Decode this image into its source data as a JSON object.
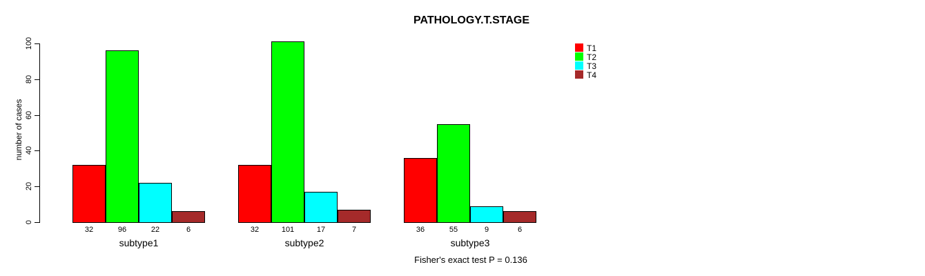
{
  "figure": {
    "title": "PATHOLOGY.T.STAGE",
    "annotation": "Fisher's exact test P = 0.136"
  },
  "chart_data": {
    "type": "bar",
    "title": "PATHOLOGY.T.STAGE",
    "xlabel": "",
    "ylabel": "number of cases",
    "categories": [
      "subtype1",
      "subtype2",
      "subtype3"
    ],
    "series": [
      {
        "name": "T1",
        "color": "#ff0000",
        "values": [
          32,
          32,
          36
        ]
      },
      {
        "name": "T2",
        "color": "#00ff00",
        "values": [
          96,
          101,
          55
        ]
      },
      {
        "name": "T3",
        "color": "#00ffff",
        "values": [
          22,
          17,
          9
        ]
      },
      {
        "name": "T4",
        "color": "#a52a2a",
        "values": [
          6,
          7,
          6
        ]
      }
    ],
    "yticks": [
      0,
      20,
      40,
      60,
      80,
      100
    ],
    "ylim": [
      0,
      105
    ],
    "grid": false,
    "bar_value_labels": true,
    "legend": {
      "position": "top-right",
      "entries": [
        {
          "label": "T1",
          "color": "#ff0000"
        },
        {
          "label": "T2",
          "color": "#00ff00"
        },
        {
          "label": "T3",
          "color": "#00ffff"
        },
        {
          "label": "T4",
          "color": "#a52a2a"
        }
      ]
    },
    "annotation": "Fisher's exact test P = 0.136"
  }
}
